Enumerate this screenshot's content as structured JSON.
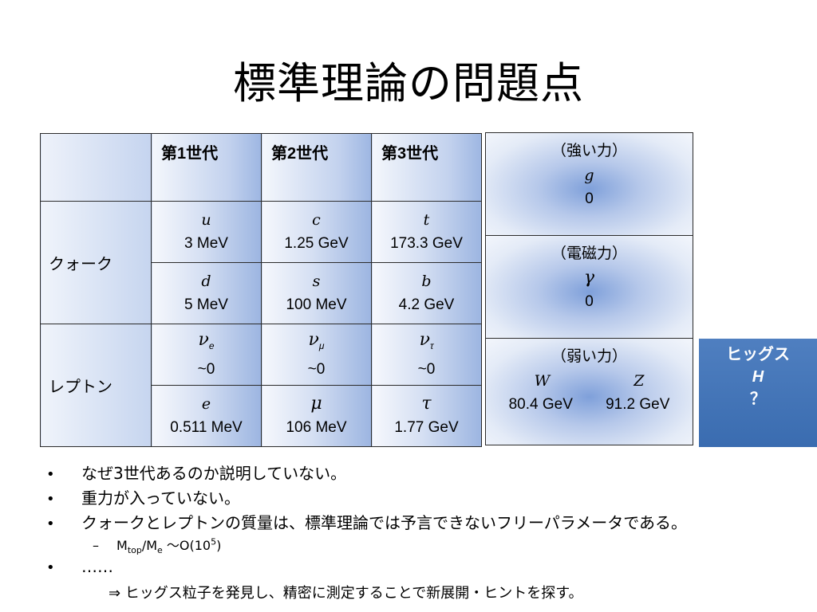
{
  "title": "標準理論の問題点",
  "table": {
    "generations": [
      "第1世代",
      "第2世代",
      "第3世代"
    ],
    "quark_label": "クォーク",
    "lepton_label": "レプトン",
    "quark_up": [
      {
        "symbol": "u",
        "mass": "3 MeV"
      },
      {
        "symbol": "c",
        "mass": "1.25 GeV"
      },
      {
        "symbol": "t",
        "mass": "173.3 GeV"
      }
    ],
    "quark_down": [
      {
        "symbol": "d",
        "mass": "5 MeV"
      },
      {
        "symbol": "s",
        "mass": "100 MeV"
      },
      {
        "symbol": "b",
        "mass": "4.2 GeV"
      }
    ],
    "neutrinos": [
      {
        "symbol": "ν",
        "sub": "e",
        "mass": "~0"
      },
      {
        "symbol": "ν",
        "sub": "μ",
        "mass": "~0"
      },
      {
        "symbol": "ν",
        "sub": "τ",
        "mass": "~0"
      }
    ],
    "charged_leptons": [
      {
        "symbol": "e",
        "mass": "0.511 MeV"
      },
      {
        "symbol": "μ",
        "mass": "106 MeV"
      },
      {
        "symbol": "τ",
        "mass": "1.77 GeV"
      }
    ]
  },
  "forces": {
    "strong": {
      "label": "（強い力）",
      "boson": "g",
      "mass": "0"
    },
    "em": {
      "label": "（電磁力）",
      "boson": "γ",
      "mass": "0"
    },
    "weak": {
      "label": "（弱い力）",
      "boson1": "W",
      "mass1": "80.4 GeV",
      "boson2": "Z",
      "mass2": "91.2 GeV"
    }
  },
  "higgs": {
    "label": "ヒッグス",
    "symbol": "H",
    "mass": "？"
  },
  "bullets": {
    "b1": "なぜ3世代あるのか説明していない。",
    "b2": "重力が入っていない。",
    "b3": "クォークとレプトンの質量は、標準理論では予言できないフリーパラメータである。",
    "sub_main1": "M",
    "sub_top": "top",
    "sub_main2": "/M",
    "sub_e": "e",
    "sub_main3": " ～O(10",
    "sub_exp": "5",
    "sub_close": ")",
    "b4": "……",
    "implication": "⇒  ヒッグス粒子を発見し、精密に測定することで新展開・ヒントを探す。",
    "bullet_char": "•",
    "dash_char": "–"
  }
}
